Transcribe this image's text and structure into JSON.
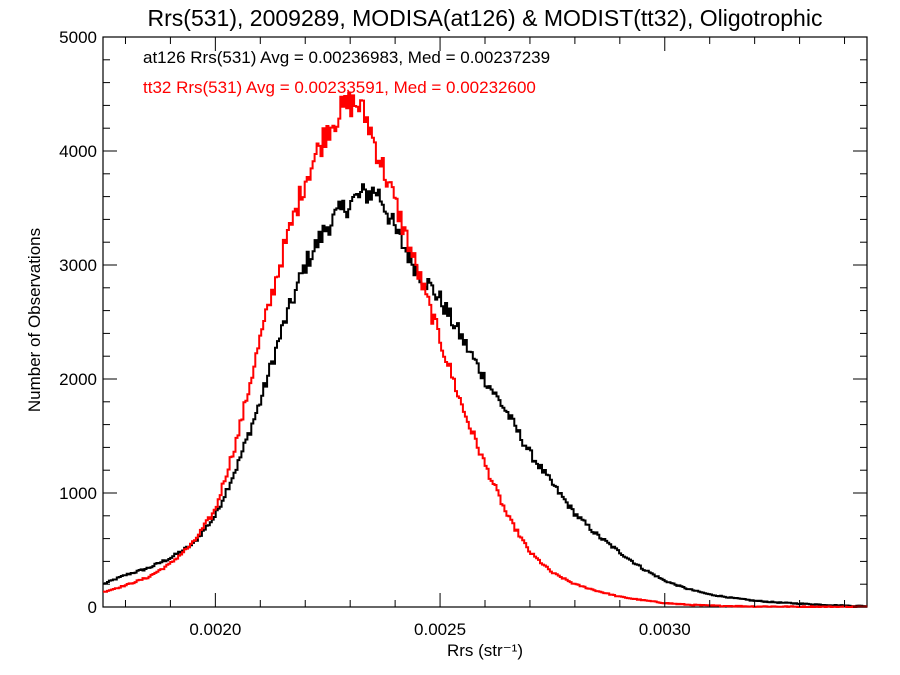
{
  "chart_data": {
    "type": "line",
    "title": "Rrs(531), 2009289, MODISA(at126) & MODIST(tt32), Oligotrophic",
    "xlabel": "Rrs (str⁻¹)",
    "ylabel": "Number of Observations",
    "xlim": [
      0.00175,
      0.00345
    ],
    "ylim": [
      0,
      5000
    ],
    "x_ticks": [
      0.002,
      0.0025,
      0.003
    ],
    "x_tick_labels": [
      "0.0020",
      "0.0025",
      "0.0030"
    ],
    "y_ticks": [
      0,
      1000,
      2000,
      3000,
      4000,
      5000
    ],
    "y_tick_labels": [
      "0",
      "1000",
      "2000",
      "3000",
      "4000",
      "5000"
    ],
    "grid": false,
    "annotations": [
      {
        "text": "at126 Rrs(531) Avg = 0.00236983, Med = 0.00237239",
        "color": "#000000"
      },
      {
        "text": "tt32 Rrs(531) Avg = 0.00233591, Med = 0.00232600",
        "color": "#ff0000"
      }
    ],
    "series": [
      {
        "color": "#000000",
        "x": [
          0.00175,
          0.0018,
          0.00185,
          0.0019,
          0.00195,
          0.002,
          0.00205,
          0.0021,
          0.00215,
          0.0022,
          0.00225,
          0.0023,
          0.00233,
          0.00236,
          0.00238,
          0.0024,
          0.00245,
          0.0025,
          0.00255,
          0.0026,
          0.00265,
          0.0027,
          0.00275,
          0.0028,
          0.00285,
          0.0029,
          0.00295,
          0.003,
          0.00305,
          0.0031,
          0.00315,
          0.0032,
          0.00325,
          0.0033,
          0.00335,
          0.0034,
          0.00345
        ],
        "y": [
          200,
          280,
          340,
          430,
          550,
          800,
          1250,
          1800,
          2450,
          3000,
          3350,
          3550,
          3620,
          3650,
          3500,
          3300,
          2950,
          2700,
          2350,
          2000,
          1700,
          1350,
          1080,
          820,
          630,
          480,
          340,
          230,
          160,
          110,
          80,
          55,
          40,
          30,
          20,
          12,
          8
        ]
      },
      {
        "color": "#ff0000",
        "x": [
          0.00175,
          0.0018,
          0.00185,
          0.0019,
          0.00195,
          0.002,
          0.00205,
          0.0021,
          0.00215,
          0.0022,
          0.00225,
          0.00228,
          0.0023,
          0.00232,
          0.00234,
          0.00236,
          0.0024,
          0.00245,
          0.0025,
          0.00255,
          0.0026,
          0.00265,
          0.0027,
          0.00275,
          0.0028,
          0.00285,
          0.0029,
          0.00295,
          0.003,
          0.00305,
          0.0031,
          0.00315,
          0.0032,
          0.0033,
          0.0034,
          0.00345
        ],
        "y": [
          130,
          190,
          260,
          380,
          560,
          850,
          1500,
          2350,
          3100,
          3750,
          4200,
          4350,
          4420,
          4400,
          4250,
          4000,
          3550,
          2950,
          2350,
          1750,
          1250,
          800,
          480,
          300,
          200,
          140,
          90,
          60,
          35,
          20,
          12,
          8,
          5,
          3,
          2,
          1
        ]
      }
    ]
  }
}
